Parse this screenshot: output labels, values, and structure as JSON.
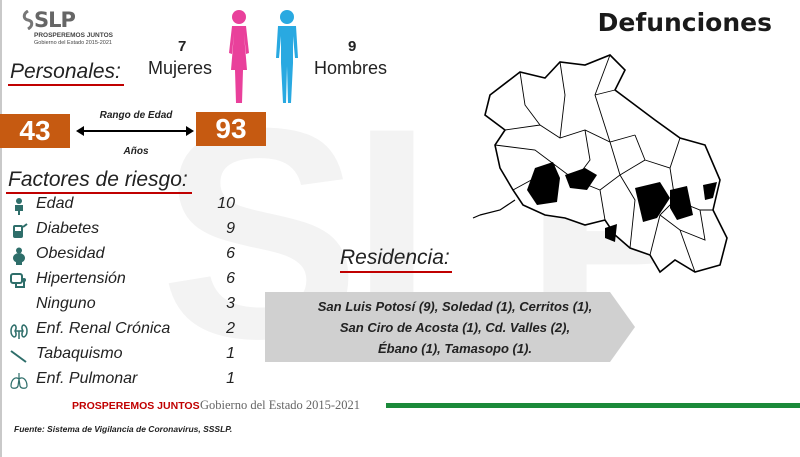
{
  "logo": {
    "main": "SLP",
    "sub": "PROSPEREMOS JUNTOS",
    "sub2": "Gobierno del Estado 2015-2021"
  },
  "title": "Defunciones",
  "personales_label": "Personales:",
  "gender": {
    "women": {
      "count": "7",
      "label": "Mujeres",
      "color": "#e9409b"
    },
    "men": {
      "count": "9",
      "label": "Hombres",
      "color": "#29a9e1"
    }
  },
  "age": {
    "min": "43",
    "max": "93",
    "range_label": "Rango de Edad",
    "unit": "Años",
    "box_color": "#c65a11"
  },
  "factores_label": "Factores de riesgo:",
  "risk_factors": [
    {
      "label": "Edad",
      "value": "10",
      "icon": "elderly-person-icon"
    },
    {
      "label": "Diabetes",
      "value": "9",
      "icon": "glucose-meter-icon"
    },
    {
      "label": "Obesidad",
      "value": "6",
      "icon": "obese-person-icon"
    },
    {
      "label": "Hipertensión",
      "value": "6",
      "icon": "blood-pressure-icon"
    },
    {
      "label": "Ninguno",
      "value": "3",
      "icon": ""
    },
    {
      "label": "Enf. Renal Crónica",
      "value": "2",
      "icon": "kidney-icon"
    },
    {
      "label": "Tabaquismo",
      "value": "1",
      "icon": "cigarette-icon"
    },
    {
      "label": "Enf. Pulmonar",
      "value": "1",
      "icon": "lungs-icon"
    }
  ],
  "residencia_label": "Residencia:",
  "residencia_lines": [
    "San Luis Potosí (9), Soledad (1), Cerritos (1),",
    "San Ciro de Acosta (1), Cd. Valles (2),",
    "Ébano (1), Tamasopo (1)."
  ],
  "footer": {
    "slogan": "PROSPEREMOS JUNTOS",
    "government": "Gobierno del Estado 2015-2021"
  },
  "source": "Fuente: Sistema de Vigilancia de Coronavirus, SSSLP.",
  "colors": {
    "accent_red": "#c00000",
    "green": "#1b8a3a"
  }
}
